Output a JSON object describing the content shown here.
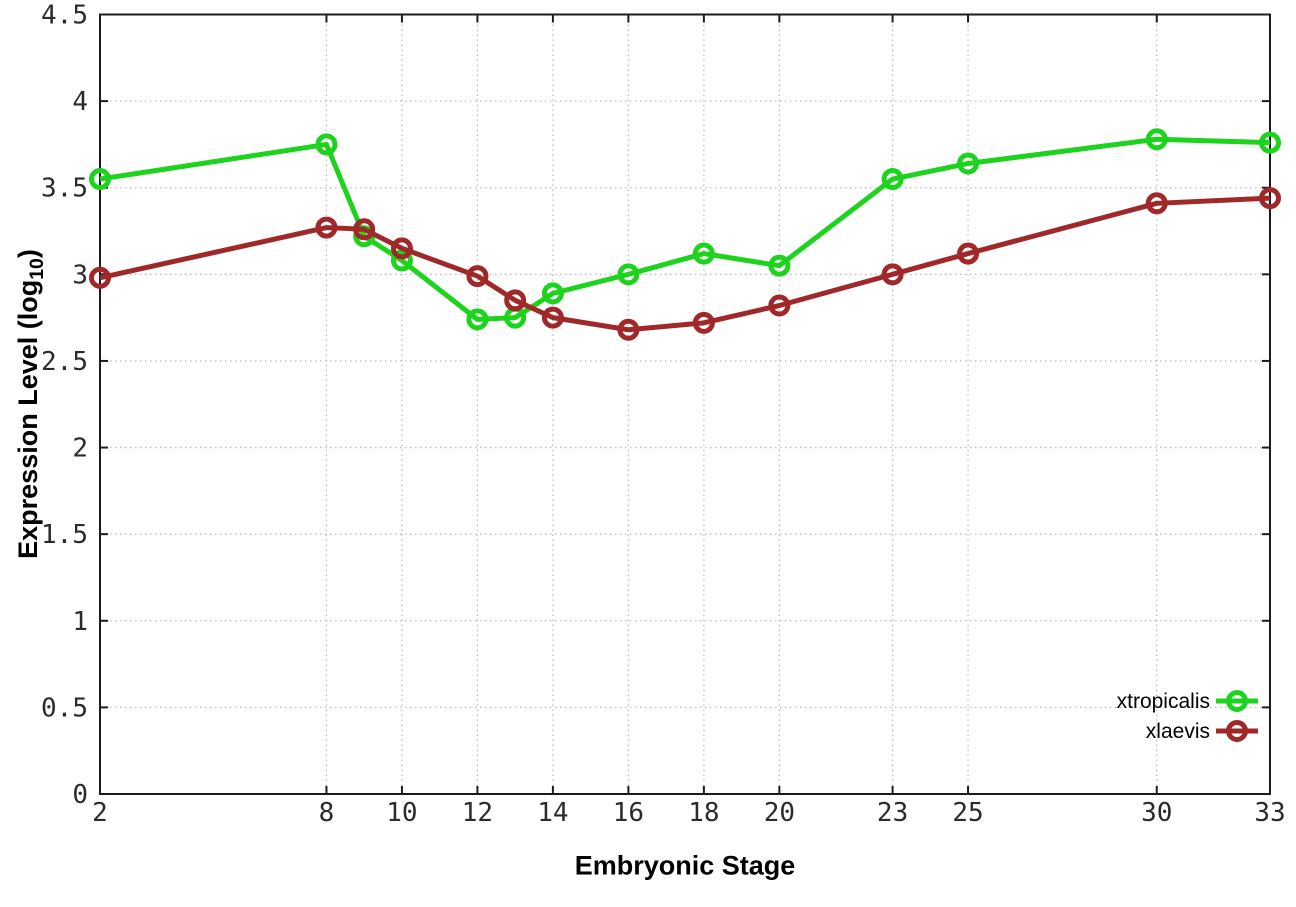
{
  "chart_data": {
    "type": "line",
    "title": "",
    "xlabel": "Embryonic Stage",
    "ylabel": "Expression Level (log10)",
    "ylabel_parts": {
      "pre": "Expression Level (log",
      "sub": "10",
      "post": ")"
    },
    "x": [
      2,
      8,
      9,
      10,
      12,
      13,
      14,
      16,
      18,
      20,
      23,
      25,
      30,
      33
    ],
    "series": [
      {
        "name": "xtropicalis",
        "color": "#1dd31d",
        "values": [
          3.55,
          3.75,
          3.22,
          3.08,
          2.74,
          2.75,
          2.89,
          3.0,
          3.12,
          3.05,
          3.55,
          3.64,
          3.78,
          3.76
        ]
      },
      {
        "name": "xlaevis",
        "color": "#a02828",
        "values": [
          2.98,
          3.27,
          3.26,
          3.15,
          2.99,
          2.85,
          2.75,
          2.68,
          2.72,
          2.82,
          3.0,
          3.12,
          3.41,
          3.44
        ]
      }
    ],
    "xticks": [
      2,
      8,
      10,
      12,
      14,
      16,
      18,
      20,
      23,
      25,
      30,
      33
    ],
    "yticks": [
      0,
      0.5,
      1,
      1.5,
      2,
      2.5,
      3,
      3.5,
      4,
      4.5
    ],
    "xlim": [
      2,
      33
    ],
    "ylim": [
      0,
      4.5
    ],
    "grid": true,
    "legend_position": "bottom-right",
    "marker": "open-circle",
    "axis_color": "#1c1c1c",
    "grid_color": "#bdbdbd",
    "background": "#ffffff"
  }
}
